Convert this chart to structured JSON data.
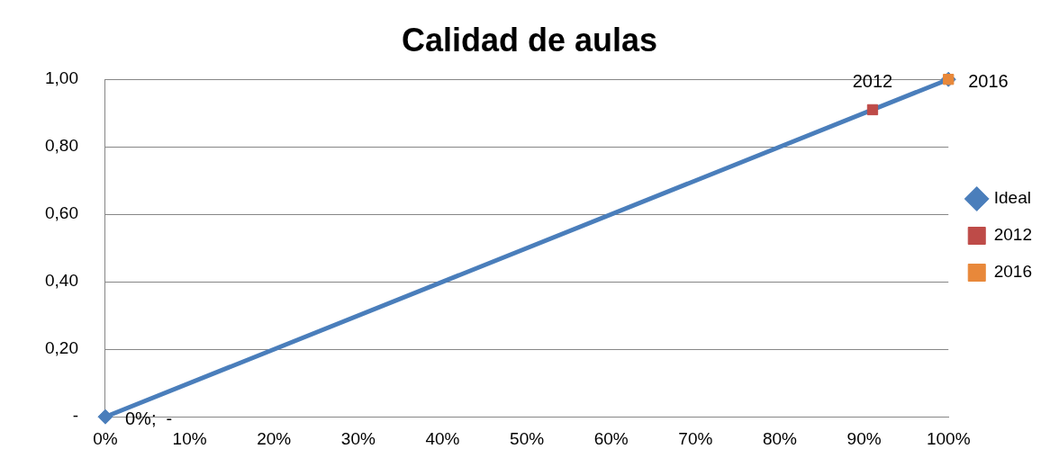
{
  "chart_data": {
    "type": "line",
    "title": "Calidad de aulas",
    "xlim": [
      0,
      1
    ],
    "xticks": [
      {
        "value": 0,
        "label": "0%"
      },
      {
        "value": 0.1,
        "label": "10%"
      },
      {
        "value": 0.2,
        "label": "20%"
      },
      {
        "value": 0.3,
        "label": "30%"
      },
      {
        "value": 0.4,
        "label": "40%"
      },
      {
        "value": 0.5,
        "label": "50%"
      },
      {
        "value": 0.6,
        "label": "60%"
      },
      {
        "value": 0.7,
        "label": "70%"
      },
      {
        "value": 0.8,
        "label": "80%"
      },
      {
        "value": 0.9,
        "label": "90%"
      },
      {
        "value": 1,
        "label": "100%"
      }
    ],
    "ylim": [
      0,
      1
    ],
    "yticks": [
      {
        "value": 0,
        "label": "-"
      },
      {
        "value": 0.2,
        "label": "0,20"
      },
      {
        "value": 0.4,
        "label": "0,40"
      },
      {
        "value": 0.6,
        "label": "0,60"
      },
      {
        "value": 0.8,
        "label": "0,80"
      },
      {
        "value": 1,
        "label": "1,00"
      }
    ],
    "grid": "y",
    "legend": "right",
    "series": [
      {
        "name": "Ideal",
        "color": "#4a7ebb",
        "marker": "diamond",
        "x": [
          0,
          1
        ],
        "values": [
          0,
          1
        ]
      },
      {
        "name": "2012",
        "type": "scatter",
        "color": "#be4b48",
        "marker": "square",
        "x": [
          0.91
        ],
        "values": [
          0.91
        ]
      },
      {
        "name": "2016",
        "type": "scatter",
        "color": "#e8883a",
        "marker": "square",
        "x": [
          1
        ],
        "values": [
          1
        ]
      }
    ],
    "annotations": [
      {
        "text": "0%;  -",
        "x": 0,
        "y": 0
      },
      {
        "text": "2012",
        "x": 0.91,
        "y": 0.91
      },
      {
        "text": "2016",
        "x": 1,
        "y": 1
      }
    ]
  }
}
